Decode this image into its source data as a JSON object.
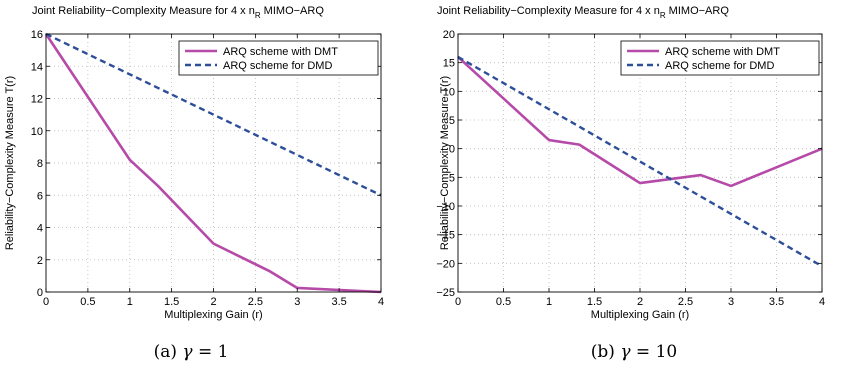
{
  "colors": {
    "dmt": "#b64aa8",
    "dmd": "#2d4f9a"
  },
  "chart_data": [
    {
      "type": "line",
      "title": "Joint Reliability−Complexity Measure for 4 x n",
      "title_subscript": "R",
      "title_suffix": " MIMO−ARQ",
      "xlabel": "Multiplexing Gain (r)",
      "ylabel": "Reliability−Complexity Measure T(r)",
      "xlim": [
        0,
        4
      ],
      "ylim": [
        0,
        16
      ],
      "xticks": [
        0,
        0.5,
        1,
        1.5,
        2,
        2.5,
        3,
        3.5,
        4
      ],
      "xtick_labels": [
        "0",
        "0.5",
        "1",
        "1.5",
        "2",
        "2.5",
        "3",
        "3.5",
        "4"
      ],
      "yticks": [
        0,
        2,
        4,
        6,
        8,
        10,
        12,
        14,
        16
      ],
      "ytick_labels": [
        "0",
        "2",
        "4",
        "6",
        "8",
        "10",
        "12",
        "14",
        "16"
      ],
      "grid": true,
      "legend": "top-right",
      "series": [
        {
          "name": "ARQ scheme with DMT",
          "style": "solid",
          "color": "#b64aa8",
          "x": [
            0,
            1,
            1.333,
            2,
            2.667,
            3,
            4
          ],
          "y": [
            16,
            8.2,
            6.6,
            3.0,
            1.3,
            0.25,
            0.0
          ]
        },
        {
          "name": "ARQ scheme for DMD",
          "style": "dashed",
          "color": "#2d4f9a",
          "x": [
            0,
            4
          ],
          "y": [
            16,
            6.0
          ]
        }
      ],
      "caption_prefix": "(a) ",
      "caption_symbol": "γ",
      "caption_suffix": " = 1"
    },
    {
      "type": "line",
      "title": "Joint Reliability−Complexity Measure for 4 x n",
      "title_subscript": "R",
      "title_suffix": " MIMO−ARQ",
      "xlabel": "Multiplexing Gain (r)",
      "ylabel": "Reliability−Complexity Measure T(r)",
      "xlim": [
        0,
        4
      ],
      "ylim": [
        -25,
        20
      ],
      "xticks": [
        0,
        0.5,
        1,
        1.5,
        2,
        2.5,
        3,
        3.5,
        4
      ],
      "xtick_labels": [
        "0",
        "0.5",
        "1",
        "1.5",
        "2",
        "2.5",
        "3",
        "3.5",
        "4"
      ],
      "yticks": [
        -25,
        -20,
        -15,
        -10,
        -5,
        0,
        5,
        10,
        15,
        20
      ],
      "ytick_labels": [
        "−25",
        "−20",
        "−15",
        "−10",
        "−5",
        "0",
        "5",
        "10",
        "15",
        "20"
      ],
      "grid": true,
      "legend": "top-right",
      "series": [
        {
          "name": "ARQ scheme with DMT",
          "style": "solid",
          "color": "#b64aa8",
          "x": [
            0,
            1,
            1.333,
            2,
            2.667,
            3,
            4
          ],
          "y": [
            16,
            1.5,
            0.7,
            -6.0,
            -4.6,
            -6.5,
            0.0
          ]
        },
        {
          "name": "ARQ scheme for DMD",
          "style": "dashed",
          "color": "#2d4f9a",
          "x": [
            0,
            4
          ],
          "y": [
            16,
            -20.5
          ]
        }
      ],
      "caption_prefix": "(b) ",
      "caption_symbol": "γ",
      "caption_suffix": " = 10"
    }
  ]
}
